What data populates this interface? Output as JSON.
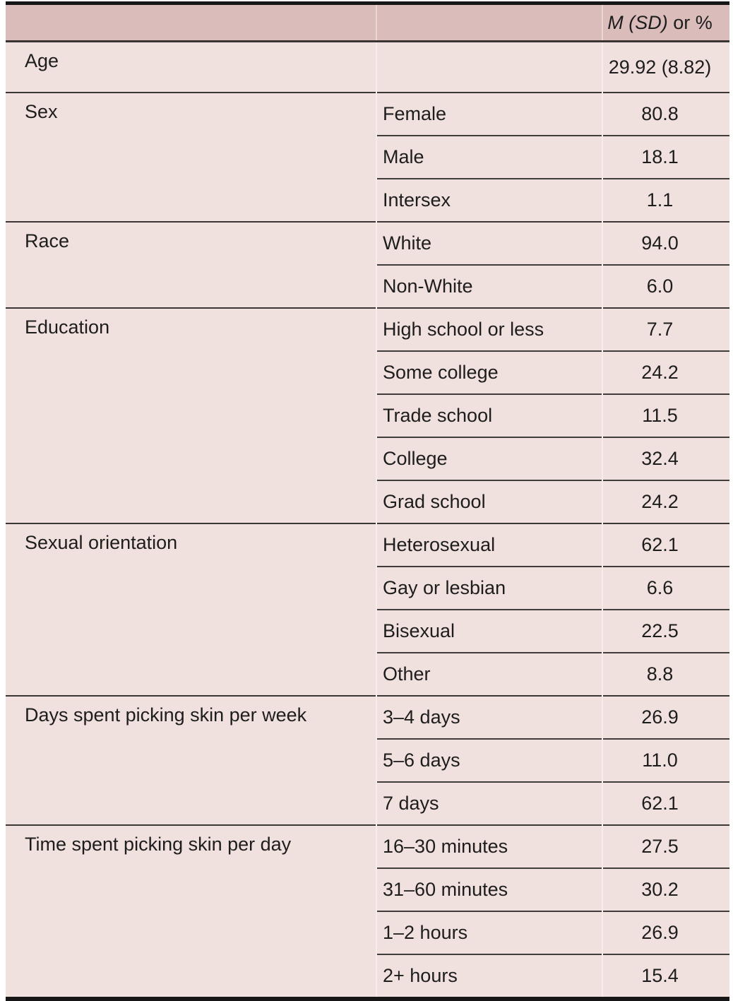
{
  "table": {
    "header": {
      "value_col_italic": "M (SD)",
      "value_col_rest": " or %"
    },
    "groups": [
      {
        "category": "Age",
        "rows": [
          {
            "label": "",
            "value": "29.92 (8.82)"
          }
        ]
      },
      {
        "category": "Sex",
        "rows": [
          {
            "label": "Female",
            "value": "80.8"
          },
          {
            "label": "Male",
            "value": "18.1"
          },
          {
            "label": "Intersex",
            "value": "1.1"
          }
        ]
      },
      {
        "category": "Race",
        "rows": [
          {
            "label": "White",
            "value": "94.0"
          },
          {
            "label": "Non-White",
            "value": "6.0"
          }
        ]
      },
      {
        "category": "Education",
        "rows": [
          {
            "label": "High school or less",
            "value": "7.7"
          },
          {
            "label": "Some college",
            "value": "24.2"
          },
          {
            "label": "Trade school",
            "value": "11.5"
          },
          {
            "label": "College",
            "value": "32.4"
          },
          {
            "label": "Grad school",
            "value": "24.2"
          }
        ]
      },
      {
        "category": "Sexual orientation",
        "rows": [
          {
            "label": "Heterosexual",
            "value": "62.1"
          },
          {
            "label": "Gay or lesbian",
            "value": "6.6"
          },
          {
            "label": "Bisexual",
            "value": "22.5"
          },
          {
            "label": "Other",
            "value": "8.8"
          }
        ]
      },
      {
        "category": "Days spent picking skin per week",
        "rows": [
          {
            "label": "3–4 days",
            "value": "26.9"
          },
          {
            "label": "5–6 days",
            "value": "11.0"
          },
          {
            "label": "7 days",
            "value": "62.1"
          }
        ]
      },
      {
        "category": "Time spent picking skin per day",
        "rows": [
          {
            "label": "16–30 minutes",
            "value": "27.5"
          },
          {
            "label": "31–60 minutes",
            "value": "30.2"
          },
          {
            "label": "1–2 hours",
            "value": "26.9"
          },
          {
            "label": "2+ hours",
            "value": "15.4"
          }
        ]
      }
    ],
    "colors": {
      "header_bg": "#dabcbb",
      "body_bg": "#f1e1de",
      "rule": "#403c3c",
      "frame": "#161616",
      "text": "#1d1d1d"
    }
  }
}
